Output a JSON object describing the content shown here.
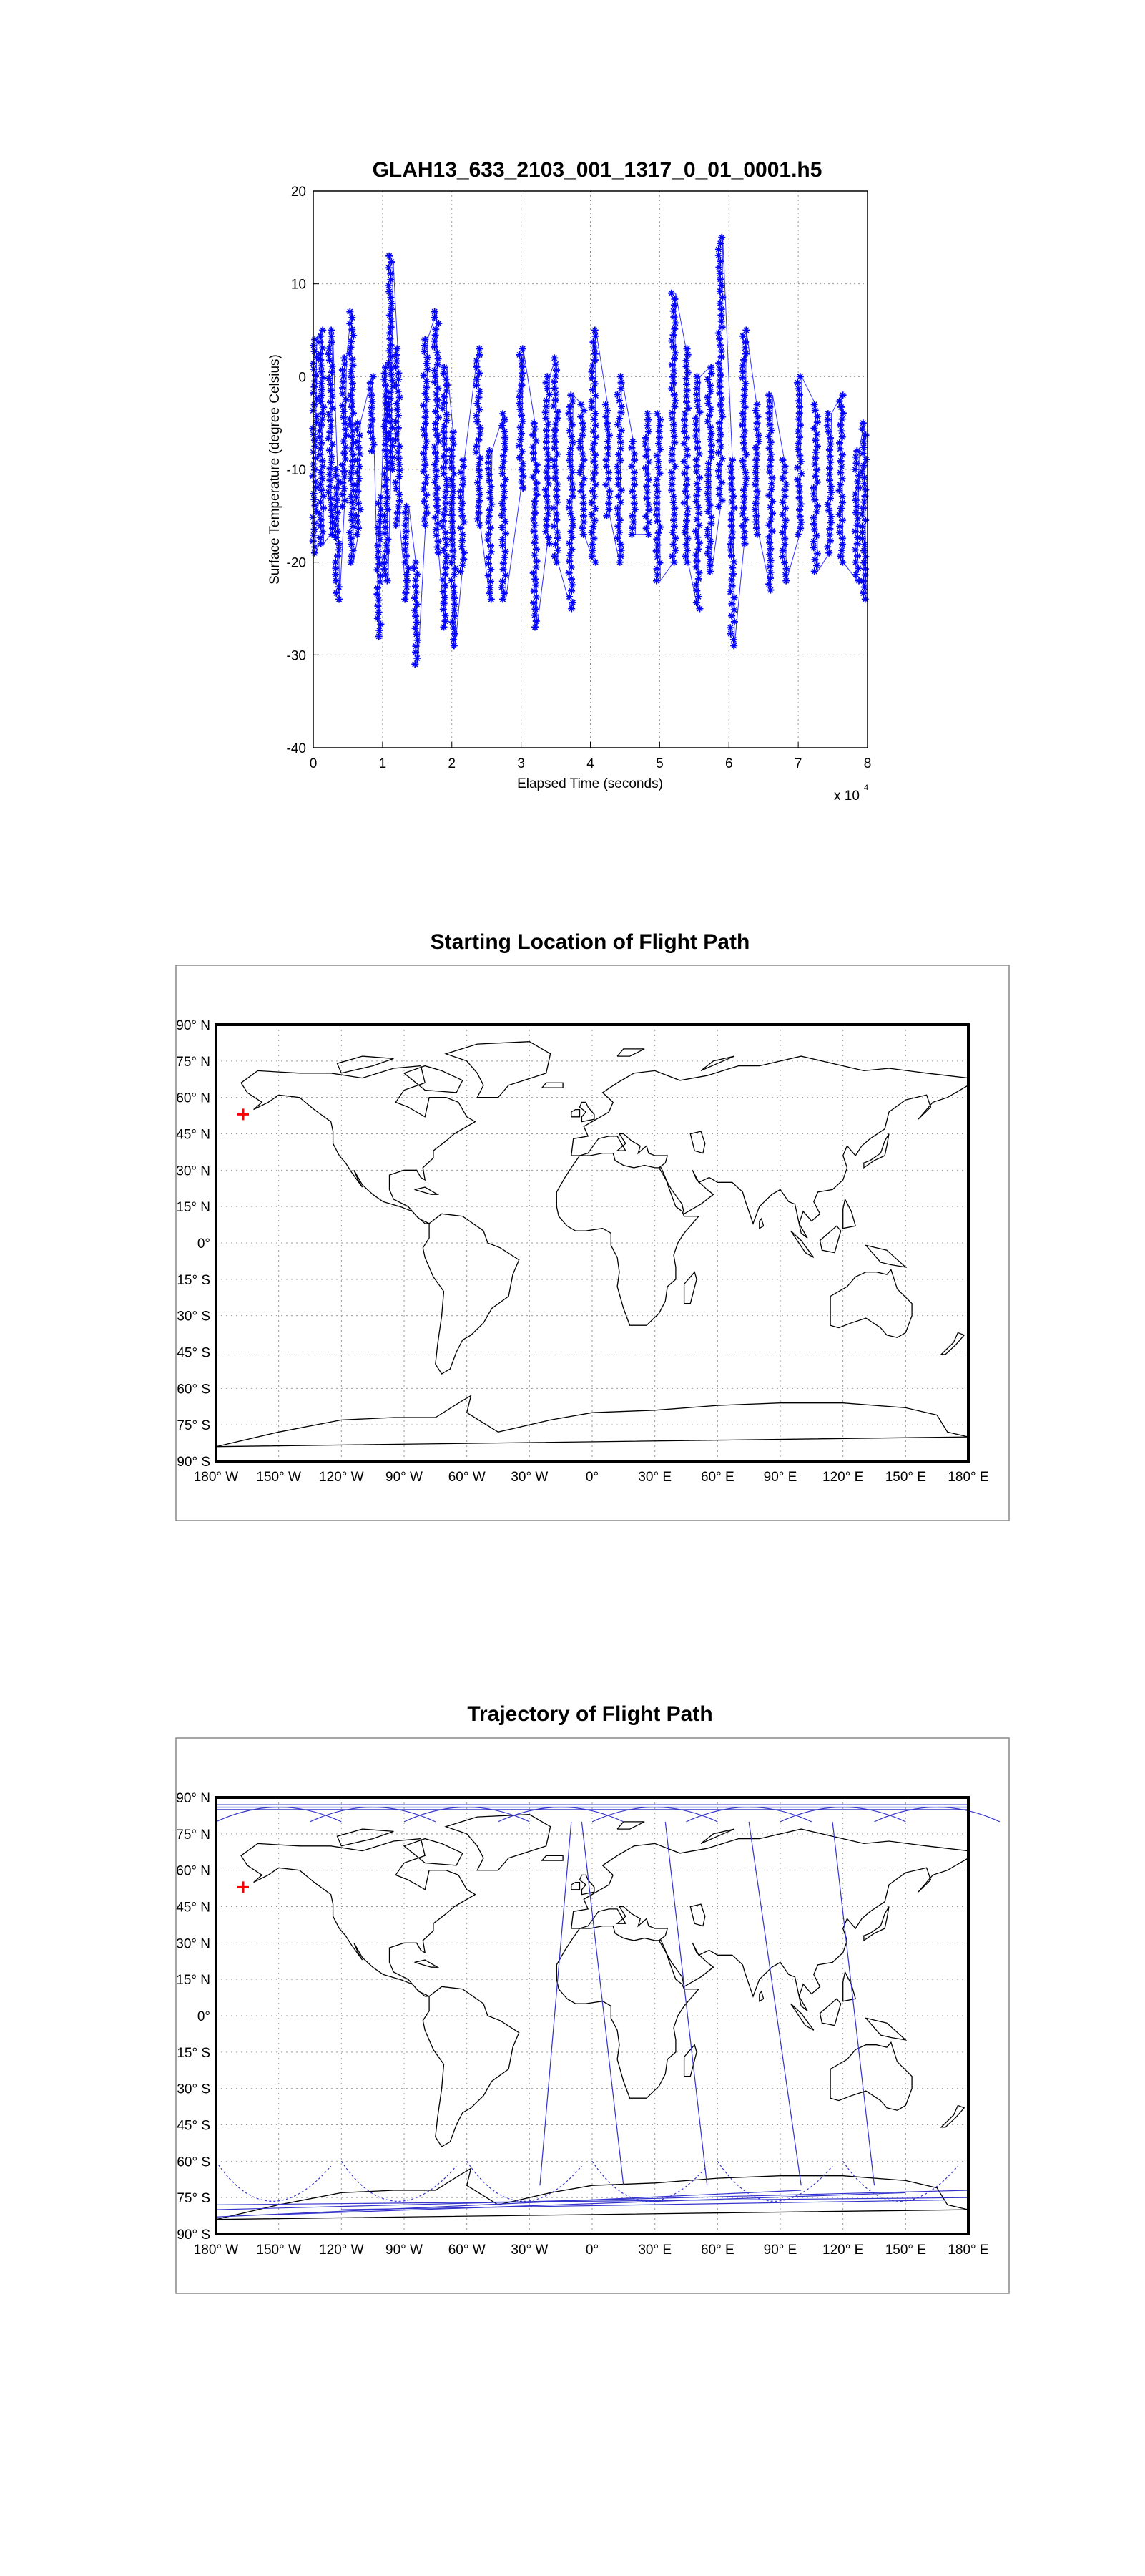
{
  "colors": {
    "series": "#0000ff",
    "marker_start": "#ff0000",
    "coast": "#000000",
    "grid": "#999999",
    "trajectory": "#3333cc"
  },
  "chart_data": [
    {
      "type": "scatter",
      "title": "GLAH13_633_2103_001_1317_0_01_0001.h5",
      "xlabel": "Elapsed Time (seconds)",
      "ylabel": "Surface Temperature (degree Celsius)",
      "x_multiplier_label": "x 10",
      "x_multiplier_exp": "4",
      "xlim": [
        0,
        8
      ],
      "ylim": [
        -40,
        20
      ],
      "xticks": [
        "0",
        "1",
        "2",
        "3",
        "4",
        "5",
        "6",
        "7",
        "8"
      ],
      "yticks": [
        "20",
        "10",
        "0",
        "-10",
        "-20",
        "-30",
        "-40"
      ],
      "grid": true,
      "marker": "*",
      "line": true,
      "note": "",
      "segments": [
        {
          "x": 0.02,
          "ymin": -19,
          "ymax": 4
        },
        {
          "x": 0.12,
          "ymin": -18,
          "ymax": 5
        },
        {
          "x": 0.25,
          "ymin": -17,
          "ymax": 5
        },
        {
          "x": 0.35,
          "ymin": -24,
          "ymax": -10
        },
        {
          "x": 0.45,
          "ymin": -14,
          "ymax": 2
        },
        {
          "x": 0.55,
          "ymin": -20,
          "ymax": 7
        },
        {
          "x": 0.65,
          "ymin": -17,
          "ymax": -5
        },
        {
          "x": 0.85,
          "ymin": -8,
          "ymax": 0
        },
        {
          "x": 0.95,
          "ymin": -28,
          "ymax": -13
        },
        {
          "x": 1.05,
          "ymin": -22,
          "ymax": 1
        },
        {
          "x": 1.12,
          "ymin": -10,
          "ymax": 13
        },
        {
          "x": 1.22,
          "ymin": -16,
          "ymax": 3
        },
        {
          "x": 1.35,
          "ymin": -24,
          "ymax": -14
        },
        {
          "x": 1.48,
          "ymin": -31,
          "ymax": -20
        },
        {
          "x": 1.62,
          "ymin": -16,
          "ymax": 4
        },
        {
          "x": 1.78,
          "ymin": -19,
          "ymax": 7
        },
        {
          "x": 1.9,
          "ymin": -27,
          "ymax": 1
        },
        {
          "x": 2.02,
          "ymin": -29,
          "ymax": -6
        },
        {
          "x": 2.15,
          "ymin": -21,
          "ymax": -9
        },
        {
          "x": 2.38,
          "ymin": -16,
          "ymax": 3
        },
        {
          "x": 2.55,
          "ymin": -24,
          "ymax": -8
        },
        {
          "x": 2.75,
          "ymin": -24,
          "ymax": -4
        },
        {
          "x": 3.0,
          "ymin": -12,
          "ymax": 3
        },
        {
          "x": 3.2,
          "ymin": -27,
          "ymax": -5
        },
        {
          "x": 3.38,
          "ymin": -18,
          "ymax": 0
        },
        {
          "x": 3.5,
          "ymin": -20,
          "ymax": 2
        },
        {
          "x": 3.72,
          "ymin": -25,
          "ymax": -2
        },
        {
          "x": 3.88,
          "ymin": -17,
          "ymax": -3
        },
        {
          "x": 4.05,
          "ymin": -20,
          "ymax": 5
        },
        {
          "x": 4.25,
          "ymin": -15,
          "ymax": -3
        },
        {
          "x": 4.42,
          "ymin": -20,
          "ymax": 0
        },
        {
          "x": 4.62,
          "ymin": -17,
          "ymax": -7
        },
        {
          "x": 4.82,
          "ymin": -17,
          "ymax": -4
        },
        {
          "x": 4.98,
          "ymin": -22,
          "ymax": -4
        },
        {
          "x": 5.2,
          "ymin": -20,
          "ymax": 9
        },
        {
          "x": 5.38,
          "ymin": -20,
          "ymax": 3
        },
        {
          "x": 5.55,
          "ymin": -25,
          "ymax": 0
        },
        {
          "x": 5.72,
          "ymin": -21,
          "ymax": 1
        },
        {
          "x": 5.88,
          "ymin": -14,
          "ymax": 15
        },
        {
          "x": 6.05,
          "ymin": -29,
          "ymax": -9
        },
        {
          "x": 6.22,
          "ymin": -18,
          "ymax": 5
        },
        {
          "x": 6.4,
          "ymin": -17,
          "ymax": -3
        },
        {
          "x": 6.6,
          "ymin": -23,
          "ymax": -2
        },
        {
          "x": 6.8,
          "ymin": -22,
          "ymax": -9
        },
        {
          "x": 7.02,
          "ymin": -17,
          "ymax": 0
        },
        {
          "x": 7.25,
          "ymin": -21,
          "ymax": -3
        },
        {
          "x": 7.45,
          "ymin": -19,
          "ymax": -4
        },
        {
          "x": 7.62,
          "ymin": -20,
          "ymax": -2
        },
        {
          "x": 7.85,
          "ymin": -22,
          "ymax": -8
        },
        {
          "x": 7.95,
          "ymin": -24,
          "ymax": -5
        }
      ]
    },
    {
      "type": "map",
      "title": "Starting Location of Flight Path",
      "lon_ticks": [
        "180° W",
        "150° W",
        "120° W",
        "90° W",
        "60° W",
        "30° W",
        "0°",
        "30° E",
        "60° E",
        "90° E",
        "120° E",
        "150° E",
        "180° E"
      ],
      "lat_ticks": [
        "90° N",
        "75° N",
        "60° N",
        "45° N",
        "30° N",
        "15° N",
        "0°",
        "15° S",
        "30° S",
        "45° S",
        "60° S",
        "75° S",
        "90° S"
      ],
      "grid": true,
      "start_point": {
        "lon": -167,
        "lat": 53
      }
    },
    {
      "type": "map",
      "title": "Trajectory of Flight Path",
      "lon_ticks": [
        "180° W",
        "150° W",
        "120° W",
        "90° W",
        "60° W",
        "30° W",
        "0°",
        "30° E",
        "60° E",
        "90° E",
        "120° E",
        "150° E",
        "180° E"
      ],
      "lat_ticks": [
        "90° N",
        "75° N",
        "60° N",
        "45° N",
        "30° N",
        "15° N",
        "0°",
        "15° S",
        "30° S",
        "45° S",
        "60° S",
        "75° S",
        "90° S"
      ],
      "grid": true,
      "start_point": {
        "lon": -167,
        "lat": 53
      },
      "trajectory_passes": [
        {
          "lon_south": 15,
          "lon_north": -5
        },
        {
          "lon_south": 55,
          "lon_north": 35
        },
        {
          "lon_south": 100,
          "lon_north": 75
        },
        {
          "lon_south": 135,
          "lon_north": 115
        },
        {
          "lon_south": -25,
          "lon_north": -10
        }
      ]
    }
  ]
}
